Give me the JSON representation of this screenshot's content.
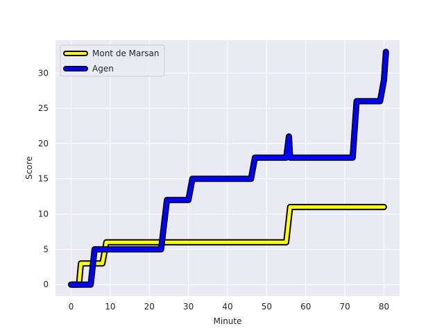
{
  "chart_data": {
    "type": "line",
    "xlabel": "Minute",
    "ylabel": "Score",
    "xlim": [
      -4,
      84
    ],
    "ylim": [
      -1.65,
      34.65
    ],
    "xticks": [
      0,
      10,
      20,
      30,
      40,
      50,
      60,
      70,
      80
    ],
    "yticks": [
      0,
      5,
      10,
      15,
      20,
      25,
      30
    ],
    "grid": true,
    "background": "#eaeaf2",
    "legend_position": "top-left",
    "series": [
      {
        "name": "Mont de Marsan",
        "color": "#ffff00",
        "edge_color": "#000000",
        "x": [
          0,
          2,
          2.5,
          8,
          9,
          23,
          24,
          55,
          56,
          80
        ],
        "y": [
          0,
          0,
          3,
          3,
          6,
          6,
          6,
          6,
          11,
          11
        ]
      },
      {
        "name": "Agen",
        "color": "#0000ff",
        "edge_color": "#000000",
        "x": [
          0,
          5,
          6,
          23,
          24.5,
          30,
          31,
          46,
          47,
          55,
          55.7,
          56,
          72,
          73,
          79,
          80,
          80.5
        ],
        "y": [
          0,
          0,
          5,
          5,
          12,
          12,
          15,
          15,
          18,
          18,
          21,
          18,
          18,
          26,
          26,
          29,
          33
        ]
      }
    ]
  }
}
